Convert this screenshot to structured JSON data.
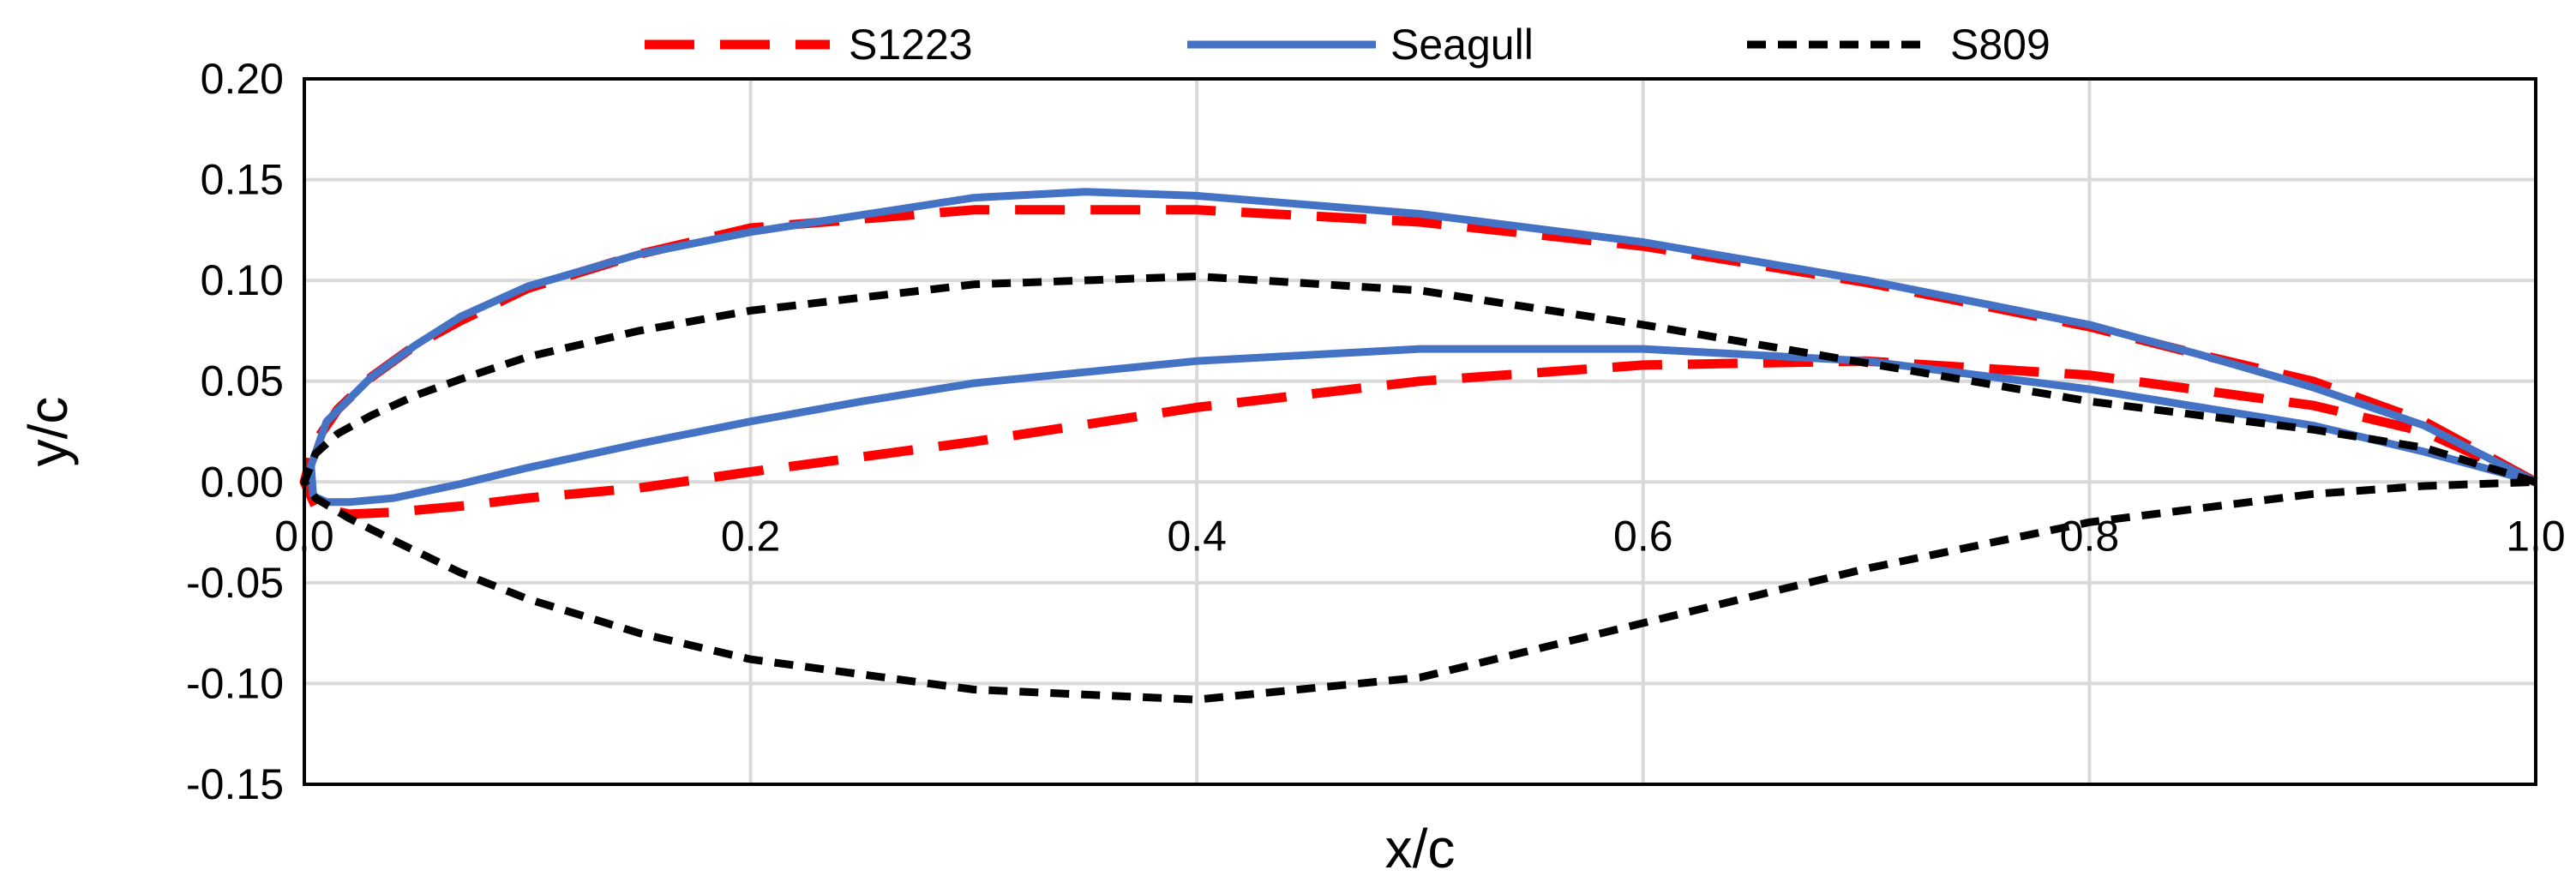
{
  "chart_data": {
    "type": "line",
    "title": "",
    "xlabel": "x/c",
    "ylabel": "y/c",
    "xlim": [
      0,
      1
    ],
    "ylim": [
      -0.15,
      0.2
    ],
    "x_ticks": [
      0.0,
      0.2,
      0.4,
      0.6,
      0.8,
      1.0
    ],
    "x_tick_labels": [
      "0.0",
      "0.2",
      "0.4",
      "0.6",
      "0.8",
      "1.0"
    ],
    "y_ticks": [
      -0.15,
      -0.1,
      -0.05,
      0.0,
      0.05,
      0.1,
      0.15,
      0.2
    ],
    "y_tick_labels": [
      "-0.15",
      "-0.10",
      "-0.05",
      "0.00",
      "0.05",
      "0.10",
      "0.15",
      "0.20"
    ],
    "grid": true,
    "legend_position": "top",
    "series": [
      {
        "name": "S1223",
        "color": "#ff0000",
        "dash": "long-dash",
        "x": [
          1.0,
          0.95,
          0.9,
          0.85,
          0.8,
          0.7,
          0.6,
          0.5,
          0.4,
          0.3,
          0.2,
          0.15,
          0.1,
          0.07,
          0.05,
          0.03,
          0.015,
          0.005,
          0.0,
          0.005,
          0.02,
          0.04,
          0.07,
          0.1,
          0.15,
          0.2,
          0.3,
          0.4,
          0.5,
          0.6,
          0.7,
          0.8,
          0.9,
          0.95,
          1.0
        ],
        "y": [
          0.0,
          0.03,
          0.05,
          0.063,
          0.077,
          0.099,
          0.117,
          0.129,
          0.135,
          0.135,
          0.126,
          0.113,
          0.096,
          0.08,
          0.068,
          0.052,
          0.036,
          0.02,
          0.0,
          -0.012,
          -0.016,
          -0.015,
          -0.012,
          -0.008,
          -0.003,
          0.005,
          0.02,
          0.037,
          0.05,
          0.058,
          0.06,
          0.053,
          0.038,
          0.025,
          0.0
        ]
      },
      {
        "name": "Seagull",
        "color": "#4472c4",
        "dash": "solid",
        "x": [
          1.0,
          0.95,
          0.9,
          0.85,
          0.8,
          0.7,
          0.6,
          0.5,
          0.4,
          0.35,
          0.3,
          0.2,
          0.15,
          0.1,
          0.07,
          0.05,
          0.03,
          0.01,
          0.003,
          0.004,
          0.01,
          0.02,
          0.04,
          0.07,
          0.1,
          0.15,
          0.2,
          0.25,
          0.3,
          0.4,
          0.5,
          0.6,
          0.7,
          0.8,
          0.9,
          0.95,
          1.0
        ],
        "y": [
          0.0,
          0.028,
          0.047,
          0.063,
          0.078,
          0.1,
          0.119,
          0.133,
          0.142,
          0.144,
          0.141,
          0.124,
          0.113,
          0.097,
          0.082,
          0.068,
          0.052,
          0.03,
          0.008,
          -0.007,
          -0.01,
          -0.01,
          -0.008,
          -0.001,
          0.007,
          0.019,
          0.03,
          0.04,
          0.049,
          0.06,
          0.066,
          0.066,
          0.06,
          0.046,
          0.028,
          0.015,
          0.0
        ]
      },
      {
        "name": "S809",
        "color": "#000000",
        "dash": "short-dash",
        "x": [
          1.0,
          0.95,
          0.9,
          0.85,
          0.8,
          0.7,
          0.6,
          0.5,
          0.4,
          0.3,
          0.2,
          0.15,
          0.1,
          0.07,
          0.05,
          0.03,
          0.015,
          0.005,
          0.0,
          0.005,
          0.02,
          0.04,
          0.07,
          0.1,
          0.15,
          0.2,
          0.3,
          0.4,
          0.5,
          0.6,
          0.7,
          0.8,
          0.9,
          0.95,
          1.0
        ],
        "y": [
          0.0,
          0.017,
          0.026,
          0.033,
          0.04,
          0.059,
          0.078,
          0.095,
          0.102,
          0.098,
          0.085,
          0.075,
          0.062,
          0.051,
          0.043,
          0.033,
          0.024,
          0.014,
          0.0,
          -0.008,
          -0.018,
          -0.029,
          -0.045,
          -0.058,
          -0.075,
          -0.088,
          -0.103,
          -0.108,
          -0.097,
          -0.07,
          -0.043,
          -0.02,
          -0.006,
          -0.002,
          0.0
        ]
      }
    ]
  }
}
